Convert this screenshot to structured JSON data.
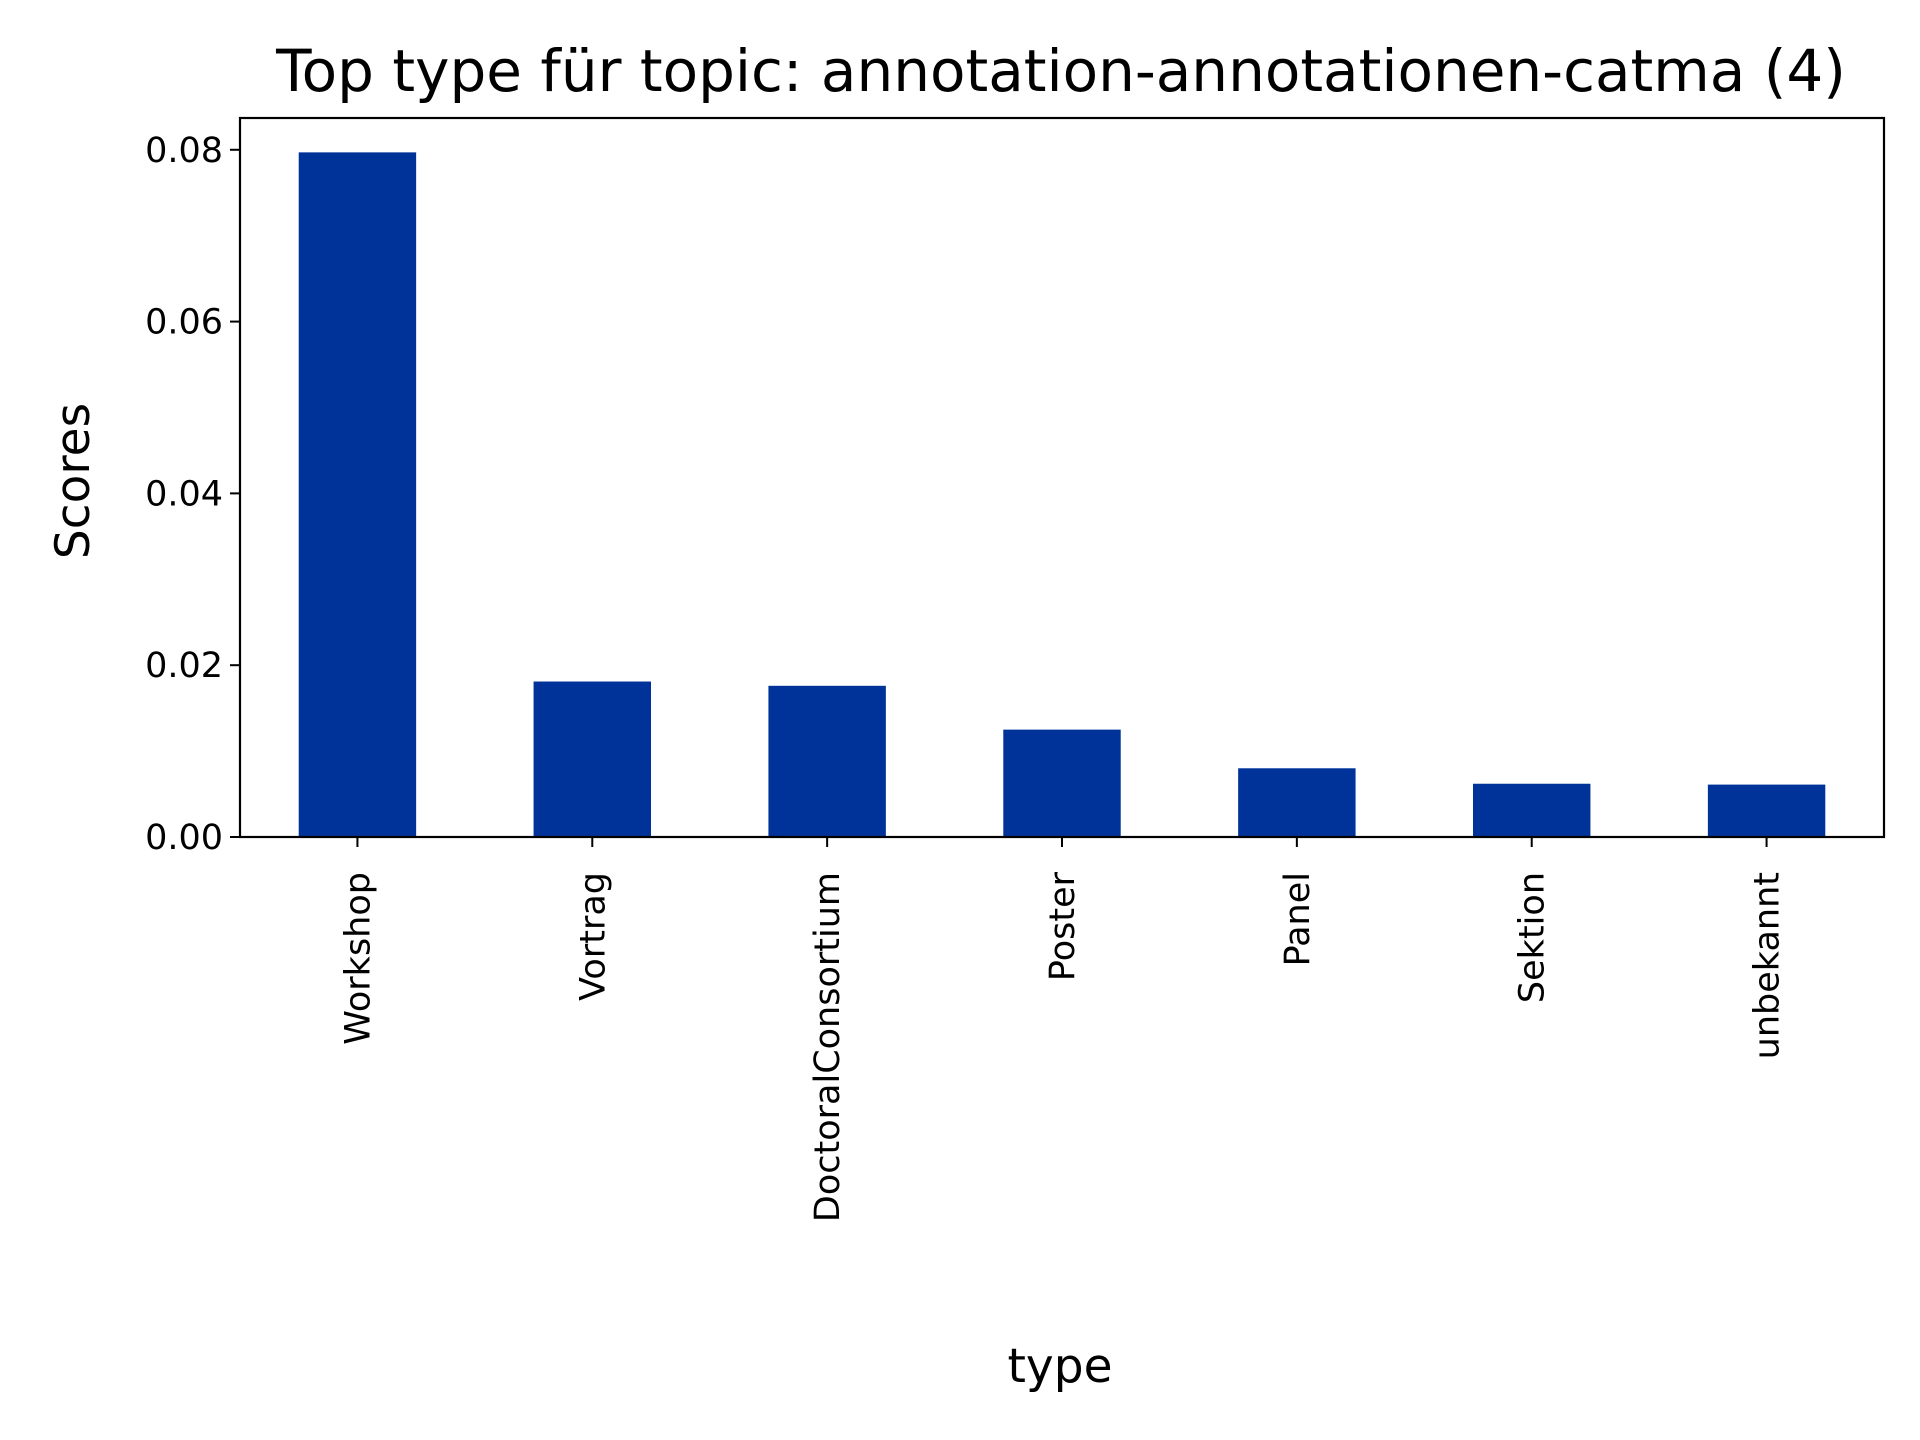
{
  "chart_data": {
    "type": "bar",
    "title": "Top type für topic: annotation-annotationen-catma (4)",
    "xlabel": "type",
    "ylabel": "Scores",
    "categories": [
      "Workshop",
      "Vortrag",
      "DoctoralConsortium",
      "Poster",
      "Panel",
      "Sektion",
      "unbekannt"
    ],
    "values": [
      0.0797,
      0.0181,
      0.0176,
      0.0125,
      0.008,
      0.0062,
      0.0061
    ],
    "yticks": [
      0.0,
      0.02,
      0.04,
      0.06,
      0.08
    ],
    "ytick_labels": [
      "0.00",
      "0.02",
      "0.04",
      "0.06",
      "0.08"
    ],
    "ylim": [
      0,
      0.0837
    ],
    "bar_color": "#003399",
    "grid": false,
    "legend": "none"
  }
}
